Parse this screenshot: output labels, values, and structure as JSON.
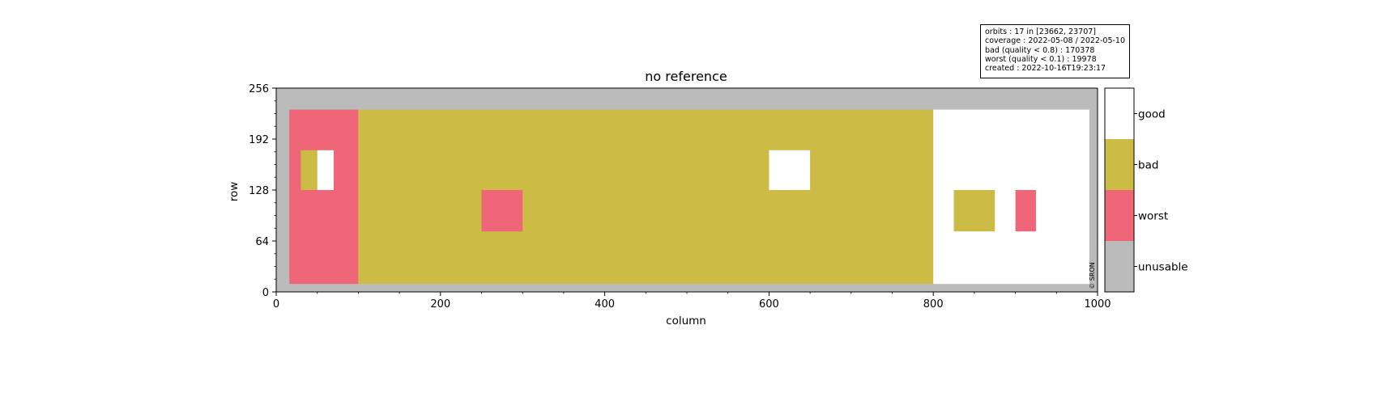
{
  "chart_data": {
    "type": "heatmap",
    "title": "no reference",
    "xlabel": "column",
    "ylabel": "row",
    "xlim": [
      0,
      1000
    ],
    "ylim": [
      0,
      256
    ],
    "x_ticks": [
      0,
      200,
      400,
      600,
      800,
      1000
    ],
    "y_ticks": [
      0,
      64,
      128,
      192,
      256
    ],
    "x_tick_labels": [
      "0",
      "200",
      "400",
      "600",
      "800",
      "1000"
    ],
    "y_tick_labels": [
      "0",
      "64",
      "128",
      "192",
      "256"
    ],
    "background_category": "unusable",
    "regions": [
      {
        "category": "worst",
        "x": [
          16,
          100
        ],
        "y": [
          10,
          229
        ]
      },
      {
        "category": "bad",
        "x": [
          100,
          800
        ],
        "y": [
          10,
          229
        ]
      },
      {
        "category": "good",
        "x": [
          800,
          990
        ],
        "y": [
          10,
          229
        ]
      },
      {
        "category": "bad",
        "x": [
          30,
          50
        ],
        "y": [
          128,
          178
        ]
      },
      {
        "category": "good",
        "x": [
          50,
          70
        ],
        "y": [
          128,
          178
        ]
      },
      {
        "category": "worst",
        "x": [
          250,
          300
        ],
        "y": [
          76,
          128
        ]
      },
      {
        "category": "good",
        "x": [
          600,
          650
        ],
        "y": [
          128,
          178
        ]
      },
      {
        "category": "bad",
        "x": [
          825,
          875
        ],
        "y": [
          76,
          128
        ]
      },
      {
        "category": "worst",
        "x": [
          900,
          925
        ],
        "y": [
          76,
          128
        ]
      }
    ],
    "legend": {
      "placement": "right",
      "categories": [
        {
          "label": "good",
          "color": "#ffffff"
        },
        {
          "label": "bad",
          "color": "#ccbb44"
        },
        {
          "label": "worst",
          "color": "#ee6677"
        },
        {
          "label": "unusable",
          "color": "#bbbbbb"
        }
      ]
    },
    "info_lines": [
      "orbits : 17 in [23662, 23707]",
      "coverage : 2022-05-08 / 2022-05-10",
      "bad (quality < 0.8) : 170378",
      "worst (quality < 0.1) : 19978",
      "created : 2022-10-16T19:23:17"
    ],
    "watermark": "© SRON",
    "grid": false
  }
}
